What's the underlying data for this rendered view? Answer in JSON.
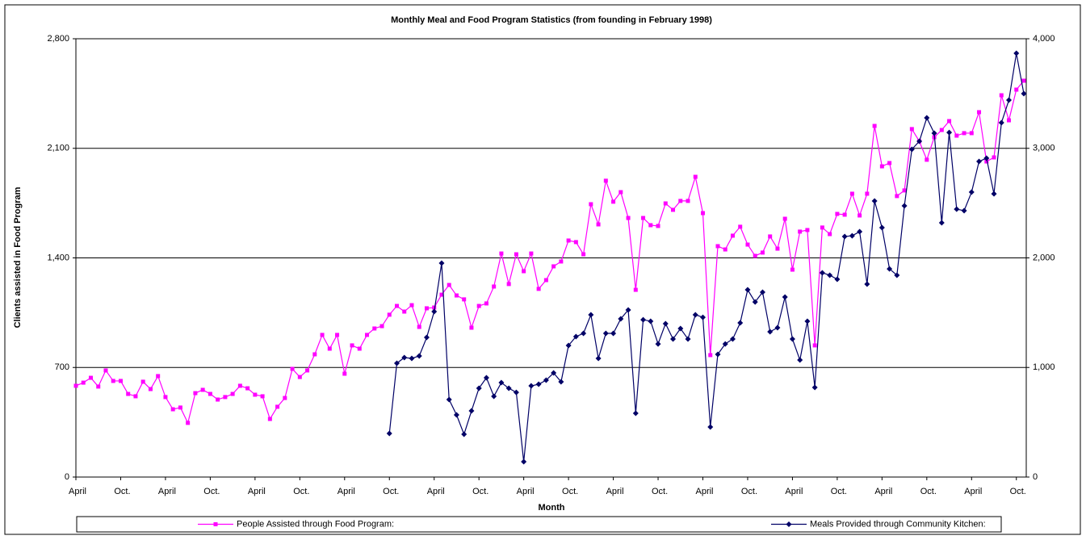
{
  "chart_data": {
    "type": "line",
    "title": "Monthly Meal and Food Program Statistics (from founding in February 1998)",
    "x_label": "Month",
    "y_label": "Clients assisted in Food Program",
    "categories": [
      "April",
      null,
      null,
      null,
      null,
      null,
      "Oct.",
      null,
      null,
      null,
      null,
      null,
      "April",
      null,
      null,
      null,
      null,
      null,
      "Oct.",
      null,
      null,
      null,
      null,
      null,
      "April",
      null,
      null,
      null,
      null,
      null,
      "Oct.",
      null,
      null,
      null,
      null,
      null,
      "April",
      null,
      null,
      null,
      null,
      null,
      "Oct.",
      null,
      null,
      null,
      null,
      null,
      "April",
      null,
      null,
      null,
      null,
      null,
      "Oct.",
      null,
      null,
      null,
      null,
      null,
      "April",
      null,
      null,
      null,
      null,
      null,
      "Oct.",
      null,
      null,
      null,
      null,
      null,
      "April",
      null,
      null,
      null,
      null,
      null,
      "Oct.",
      null,
      null,
      null,
      null,
      null,
      "April",
      null,
      null,
      null,
      null,
      null,
      "Oct.",
      null,
      null,
      null,
      null,
      null,
      "April",
      null,
      null,
      null,
      null,
      null,
      "Oct.",
      null,
      null,
      null,
      null,
      null,
      "April",
      null,
      null,
      null,
      null,
      null,
      "Oct.",
      null,
      null,
      null,
      null,
      null,
      "April",
      null,
      null,
      null,
      null,
      null,
      "Oct.",
      null
    ],
    "ylim": [
      0,
      2800
    ],
    "yticks": [
      0,
      700,
      {
        "value": 1400,
        "label": "1,400"
      },
      {
        "value": 2100,
        "label": "2,100"
      },
      {
        "value": 2800,
        "label": "2,800"
      }
    ],
    "y2lim": [
      0,
      4000
    ],
    "y2ticks": [
      0,
      {
        "value": 1000,
        "label": "1,000"
      },
      {
        "value": 2000,
        "label": "2,000"
      },
      {
        "value": 3000,
        "label": "3,000"
      },
      {
        "value": 4000,
        "label": "4,000"
      }
    ],
    "grid": true,
    "legend": "bottom",
    "series": [
      {
        "name": "People Assisted through Food Program:",
        "color": "#ff00ff",
        "marker": "square",
        "values": [
          583,
          603,
          634,
          578,
          681,
          614,
          614,
          531,
          516,
          609,
          562,
          645,
          511,
          433,
          444,
          346,
          536,
          557,
          531,
          495,
          511,
          531,
          583,
          567,
          526,
          516,
          371,
          449,
          505,
          691,
          639,
          681,
          784,
          908,
          820,
          908,
          660,
          841,
          820,
          908,
          949,
          964,
          1037,
          1093,
          1057,
          1098,
          959,
          1078,
          1083,
          1165,
          1227,
          1160,
          1135,
          954,
          1093,
          1109,
          1217,
          1428,
          1233,
          1423,
          1315,
          1428,
          1202,
          1258,
          1346,
          1377,
          1511,
          1501,
          1423,
          1743,
          1614,
          1893,
          1759,
          1820,
          1655,
          1196,
          1655,
          1609,
          1604,
          1748,
          1707,
          1764,
          1764,
          1918,
          1686,
          779,
          1475,
          1454,
          1542,
          1599,
          1485,
          1413,
          1434,
          1537,
          1459,
          1650,
          1325,
          1568,
          1578,
          841,
          1594,
          1552,
          1681,
          1676,
          1810,
          1671,
          1810,
          2243,
          1985,
          2006,
          1795,
          1831,
          2223,
          2145,
          2027,
          2171,
          2217,
          2274,
          2181,
          2197,
          2197,
          2331,
          2016,
          2042,
          2439,
          2279,
          2475,
          2532
        ]
      },
      {
        "name": "Meals Provided through Community Kitchen:",
        "color": "#000066",
        "marker": "diamond",
        "axis": "y2",
        "values": [
          null,
          null,
          null,
          null,
          null,
          null,
          null,
          null,
          null,
          null,
          null,
          null,
          null,
          null,
          null,
          null,
          null,
          null,
          null,
          null,
          null,
          null,
          null,
          null,
          null,
          null,
          null,
          null,
          null,
          null,
          null,
          null,
          null,
          null,
          null,
          null,
          null,
          null,
          null,
          null,
          null,
          null,
          398,
          1039,
          1090,
          1083,
          1105,
          1274,
          1510,
          1952,
          707,
          567,
          390,
          604,
          810,
          906,
          737,
          862,
          810,
          773,
          140,
          832,
          847,
          884,
          950,
          869,
          1201,
          1282,
          1311,
          1481,
          1083,
          1311,
          1311,
          1444,
          1525,
          582,
          1436,
          1422,
          1215,
          1400,
          1260,
          1355,
          1260,
          1481,
          1458,
          457,
          1120,
          1215,
          1260,
          1407,
          1709,
          1598,
          1687,
          1326,
          1363,
          1643,
          1260,
          1068,
          1422,
          818,
          1864,
          1842,
          1805,
          2195,
          2202,
          2239,
          1761,
          2519,
          2276,
          1900,
          1842,
          2475,
          2991,
          3064,
          3278,
          3138,
          2320,
          3145,
          2445,
          2431,
          2600,
          2880,
          2910,
          2585,
          3234,
          3440,
          3867,
          3499
        ]
      }
    ]
  }
}
